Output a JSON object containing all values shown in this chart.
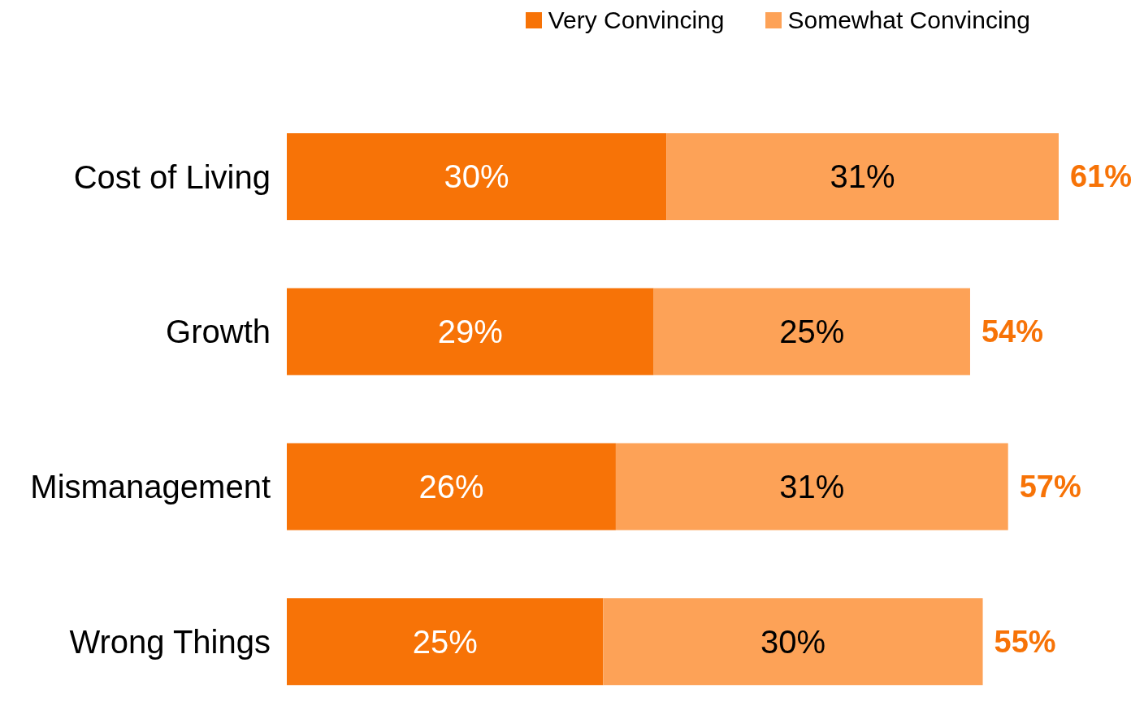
{
  "chart_data": {
    "type": "bar",
    "orientation": "horizontal",
    "stacked": true,
    "legend": "top right",
    "grid": false,
    "tick_labels": "y",
    "categories": [
      "Cost of Living",
      "Growth",
      "Mismanagement",
      "Wrong Things"
    ],
    "series": [
      {
        "name": "Very Convincing",
        "color": "#f77307",
        "values": [
          30,
          29,
          26,
          25
        ],
        "value_labels": [
          "30%",
          "29%",
          "26%",
          "25%"
        ]
      },
      {
        "name": "Somewhat Convincing",
        "color": "#fda257",
        "values": [
          31,
          25,
          31,
          30
        ],
        "value_labels": [
          "31%",
          "25%",
          "31%",
          "30%"
        ]
      }
    ],
    "totals": [
      "61%",
      "54%",
      "57%",
      "55%"
    ]
  }
}
